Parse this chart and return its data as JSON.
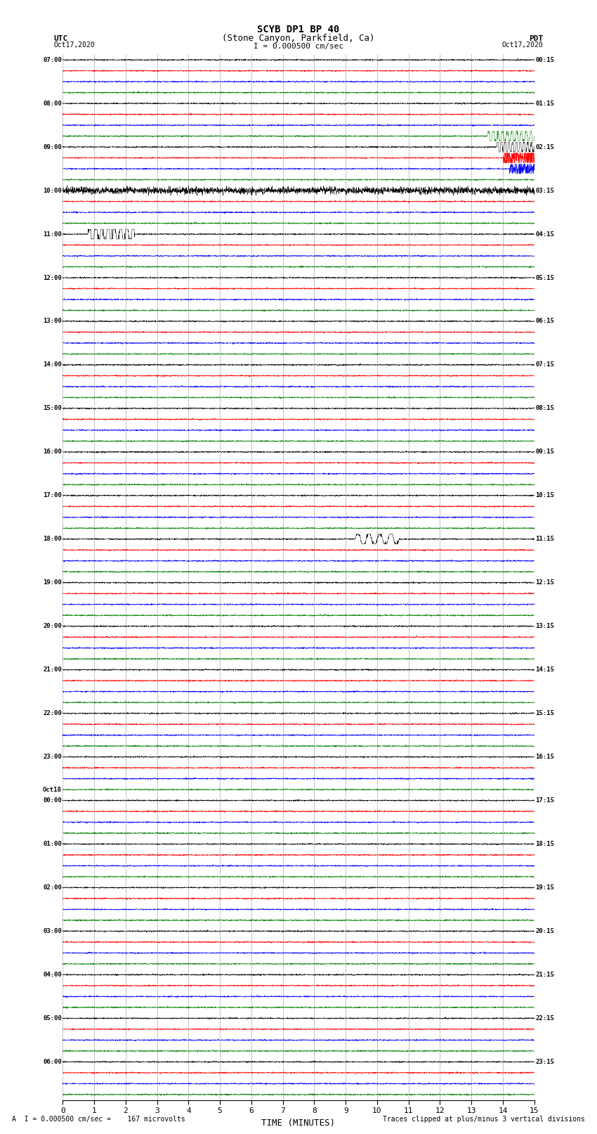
{
  "title_line1": "SCYB DP1 BP 40",
  "title_line2": "(Stone Canyon, Parkfield, Ca)",
  "scale_label": "I = 0.000500 cm/sec",
  "left_header": "UTC",
  "left_date": "Oct17,2020",
  "right_header": "PDT",
  "right_date": "Oct17,2020",
  "xlabel": "TIME (MINUTES)",
  "footer_left": "A  I = 0.000500 cm/sec =    167 microvolts",
  "footer_right": "Traces clipped at plus/minus 3 vertical divisions",
  "xlim": [
    0,
    15
  ],
  "bg_color": "#ffffff",
  "trace_colors": [
    "black",
    "red",
    "blue",
    "green"
  ],
  "utc_labels": [
    [
      "07:00",
      0
    ],
    [
      "08:00",
      4
    ],
    [
      "09:00",
      8
    ],
    [
      "10:00",
      12
    ],
    [
      "11:00",
      16
    ],
    [
      "12:00",
      20
    ],
    [
      "13:00",
      24
    ],
    [
      "14:00",
      28
    ],
    [
      "15:00",
      32
    ],
    [
      "16:00",
      36
    ],
    [
      "17:00",
      40
    ],
    [
      "18:00",
      44
    ],
    [
      "19:00",
      48
    ],
    [
      "20:00",
      52
    ],
    [
      "21:00",
      56
    ],
    [
      "22:00",
      60
    ],
    [
      "23:00",
      64
    ],
    [
      "Oct18",
      68
    ],
    [
      "00:00",
      68
    ],
    [
      "01:00",
      72
    ],
    [
      "02:00",
      76
    ],
    [
      "03:00",
      80
    ],
    [
      "04:00",
      84
    ],
    [
      "05:00",
      88
    ],
    [
      "06:00",
      92
    ]
  ],
  "pdt_labels": [
    [
      "00:15",
      0
    ],
    [
      "01:15",
      4
    ],
    [
      "02:15",
      8
    ],
    [
      "03:15",
      12
    ],
    [
      "04:15",
      16
    ],
    [
      "05:15",
      20
    ],
    [
      "06:15",
      24
    ],
    [
      "07:15",
      28
    ],
    [
      "08:15",
      32
    ],
    [
      "09:15",
      36
    ],
    [
      "10:15",
      40
    ],
    [
      "11:15",
      44
    ],
    [
      "12:15",
      48
    ],
    [
      "13:15",
      52
    ],
    [
      "14:15",
      56
    ],
    [
      "15:15",
      60
    ],
    [
      "16:15",
      64
    ],
    [
      "17:15",
      68
    ],
    [
      "18:15",
      72
    ],
    [
      "19:15",
      76
    ],
    [
      "20:15",
      80
    ],
    [
      "21:15",
      84
    ],
    [
      "22:15",
      88
    ],
    [
      "23:15",
      92
    ]
  ],
  "num_traces": 96,
  "noise_amplitude": 0.03,
  "seed": 42,
  "xticks": [
    0,
    1,
    2,
    3,
    4,
    5,
    6,
    7,
    8,
    9,
    10,
    11,
    12,
    13,
    14,
    15
  ]
}
